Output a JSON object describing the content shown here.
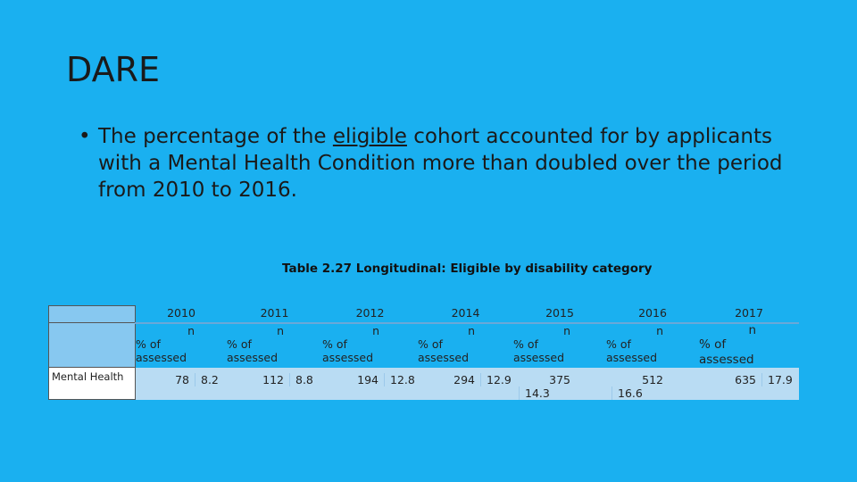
{
  "title": "DARE",
  "bullet": {
    "before": "The percentage of the ",
    "underlined": "eligible",
    "after": " cohort accounted for by applicants with a Mental Health Condition more than doubled over the period from 2010 to 2016."
  },
  "table": {
    "caption": "Table 2.27 Longitudinal: Eligible by disability category",
    "n_label": "n",
    "pct_label": "% of assessed",
    "row_label": "Mental Health",
    "years": [
      "2010",
      "2011",
      "2012",
      "2014",
      "2015",
      "2016",
      "2017"
    ],
    "rows": [
      {
        "label": "Mental Health",
        "n": [
          "78",
          "112",
          "194",
          "294",
          "375",
          "512",
          "635"
        ],
        "pct": [
          "8.2",
          "8.8",
          "12.8",
          "12.9",
          "14.3",
          "16.6",
          "17.9"
        ]
      }
    ]
  }
}
